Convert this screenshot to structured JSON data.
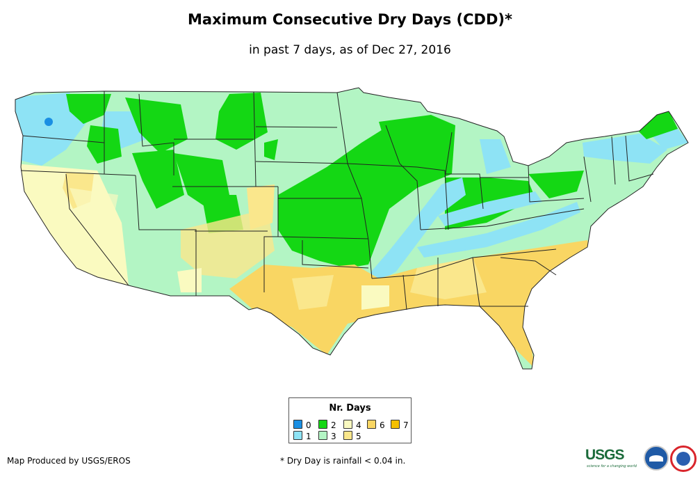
{
  "title": "Maximum Consecutive Dry Days (CDD)*",
  "subtitle": "in past 7 days, as of Dec 27, 2016",
  "legend": {
    "title": "Nr. Days",
    "items": [
      {
        "label": "0",
        "color": "#1a8fe3"
      },
      {
        "label": "1",
        "color": "#8ee3f5"
      },
      {
        "label": "2",
        "color": "#14d714"
      },
      {
        "label": "3",
        "color": "#b3f5c4"
      },
      {
        "label": "4",
        "color": "#fafac0"
      },
      {
        "label": "5",
        "color": "#fae78c"
      },
      {
        "label": "6",
        "color": "#f9d663"
      },
      {
        "label": "7",
        "color": "#f5c000"
      }
    ]
  },
  "footer": {
    "credit": "Map Produced by USGS/EROS",
    "note": "* Dry Day is rainfall < 0.04 in."
  },
  "logos": {
    "usgs": "USGS",
    "usgs_tagline": "science for a changing world",
    "noaa": "noaa-logo",
    "nws": "nws-logo"
  }
}
